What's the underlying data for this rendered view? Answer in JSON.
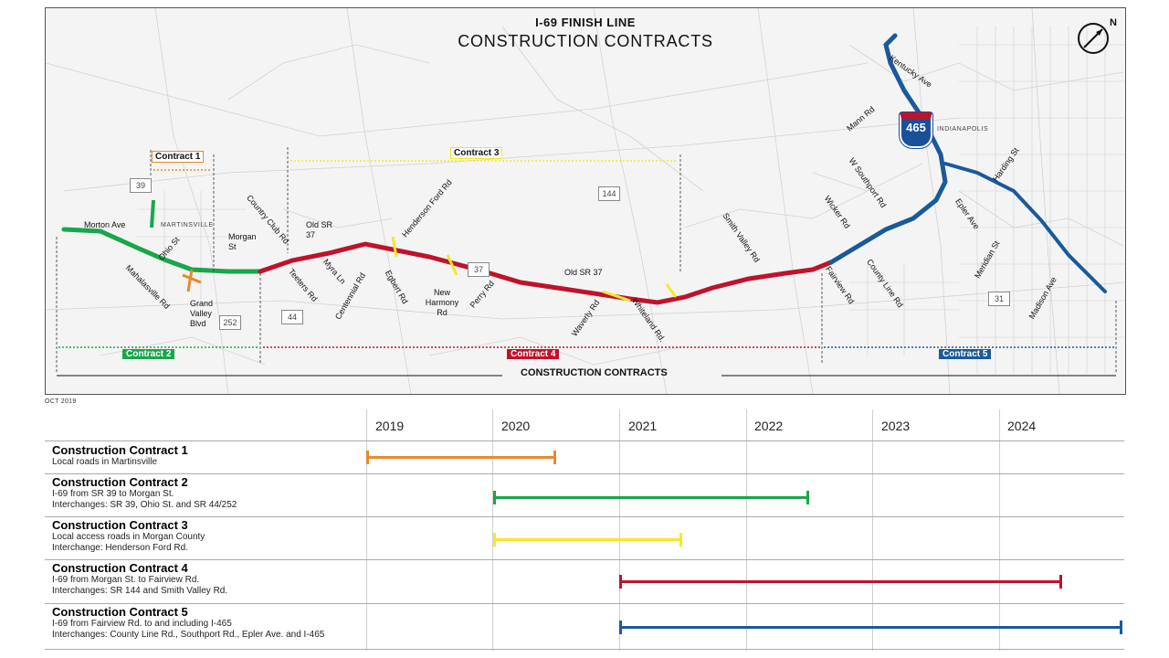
{
  "map": {
    "title_top": "I-69 FINISH LINE",
    "title_main": "CONSTRUCTION CONTRACTS",
    "north_label": "N",
    "interstate_shield": "465",
    "city_label": "INDIANAPOLIS",
    "town_label": "MARTINSVILLE",
    "bottom_label": "CONSTRUCTION CONTRACTS",
    "contract_labels": {
      "c1": "Contract 1",
      "c2": "Contract 2",
      "c3": "Contract 3",
      "c4": "Contract 4",
      "c5": "Contract 5"
    },
    "route_shields": [
      "39",
      "144",
      "37",
      "44",
      "252",
      "31"
    ],
    "road_labels": [
      "Morton Ave",
      "Ohio St",
      "Mahalasville Rd",
      "Grand Valley Blvd",
      "Morgan St",
      "Country Club Rd",
      "Teeters Rd",
      "Old SR 37",
      "Myra Ln",
      "Centennial Rd",
      "Henderson Ford Rd",
      "Egbert Rd",
      "New Harmony Rd",
      "Perry Rd",
      "Old SR 37",
      "Waverly Rd",
      "Whiteland Rd.",
      "Smith Valley Rd",
      "Wicker Rd",
      "Fairview Rd",
      "County Line Rd",
      "W Southport Rd",
      "Mann Rd",
      "Kentucky Ave",
      "Epler Ave",
      "Harding St",
      "Meridian St",
      "Madison Ave"
    ]
  },
  "date_stamp": "OCT 2019",
  "colors": {
    "contract1": "#e8892a",
    "contract2": "#1aa64a",
    "contract3": "#f2e82a",
    "contract4": "#c0122a",
    "contract5": "#1a5a9a"
  },
  "gantt": {
    "years": [
      "2019",
      "2020",
      "2021",
      "2022",
      "2023",
      "2024"
    ],
    "rows": [
      {
        "title": "Construction Contract 1",
        "desc": [
          "Local roads in Martinsville"
        ],
        "start": 2019.0,
        "end": 2020.5,
        "color_key": "contract1"
      },
      {
        "title": "Construction Contract 2",
        "desc": [
          "I-69 from SR 39 to Morgan St.",
          "Interchanges: SR 39, Ohio St. and SR 44/252"
        ],
        "start": 2020.0,
        "end": 2022.5,
        "color_key": "contract2"
      },
      {
        "title": "Construction Contract 3",
        "desc": [
          "Local access roads in Morgan County",
          "Interchange: Henderson Ford Rd."
        ],
        "start": 2020.0,
        "end": 2021.5,
        "color_key": "contract3"
      },
      {
        "title": "Construction Contract 4",
        "desc": [
          "I-69 from Morgan St. to Fairview Rd.",
          "Interchanges: SR 144 and Smith Valley Rd."
        ],
        "start": 2021.0,
        "end": 2024.5,
        "color_key": "contract4"
      },
      {
        "title": "Construction Contract 5",
        "desc": [
          "I-69 from Fairview Rd. to and including I-465",
          "Interchanges: County Line Rd., Southport Rd., Epler Ave. and I-465"
        ],
        "start": 2021.0,
        "end": 2025.0,
        "color_key": "contract5"
      }
    ]
  }
}
